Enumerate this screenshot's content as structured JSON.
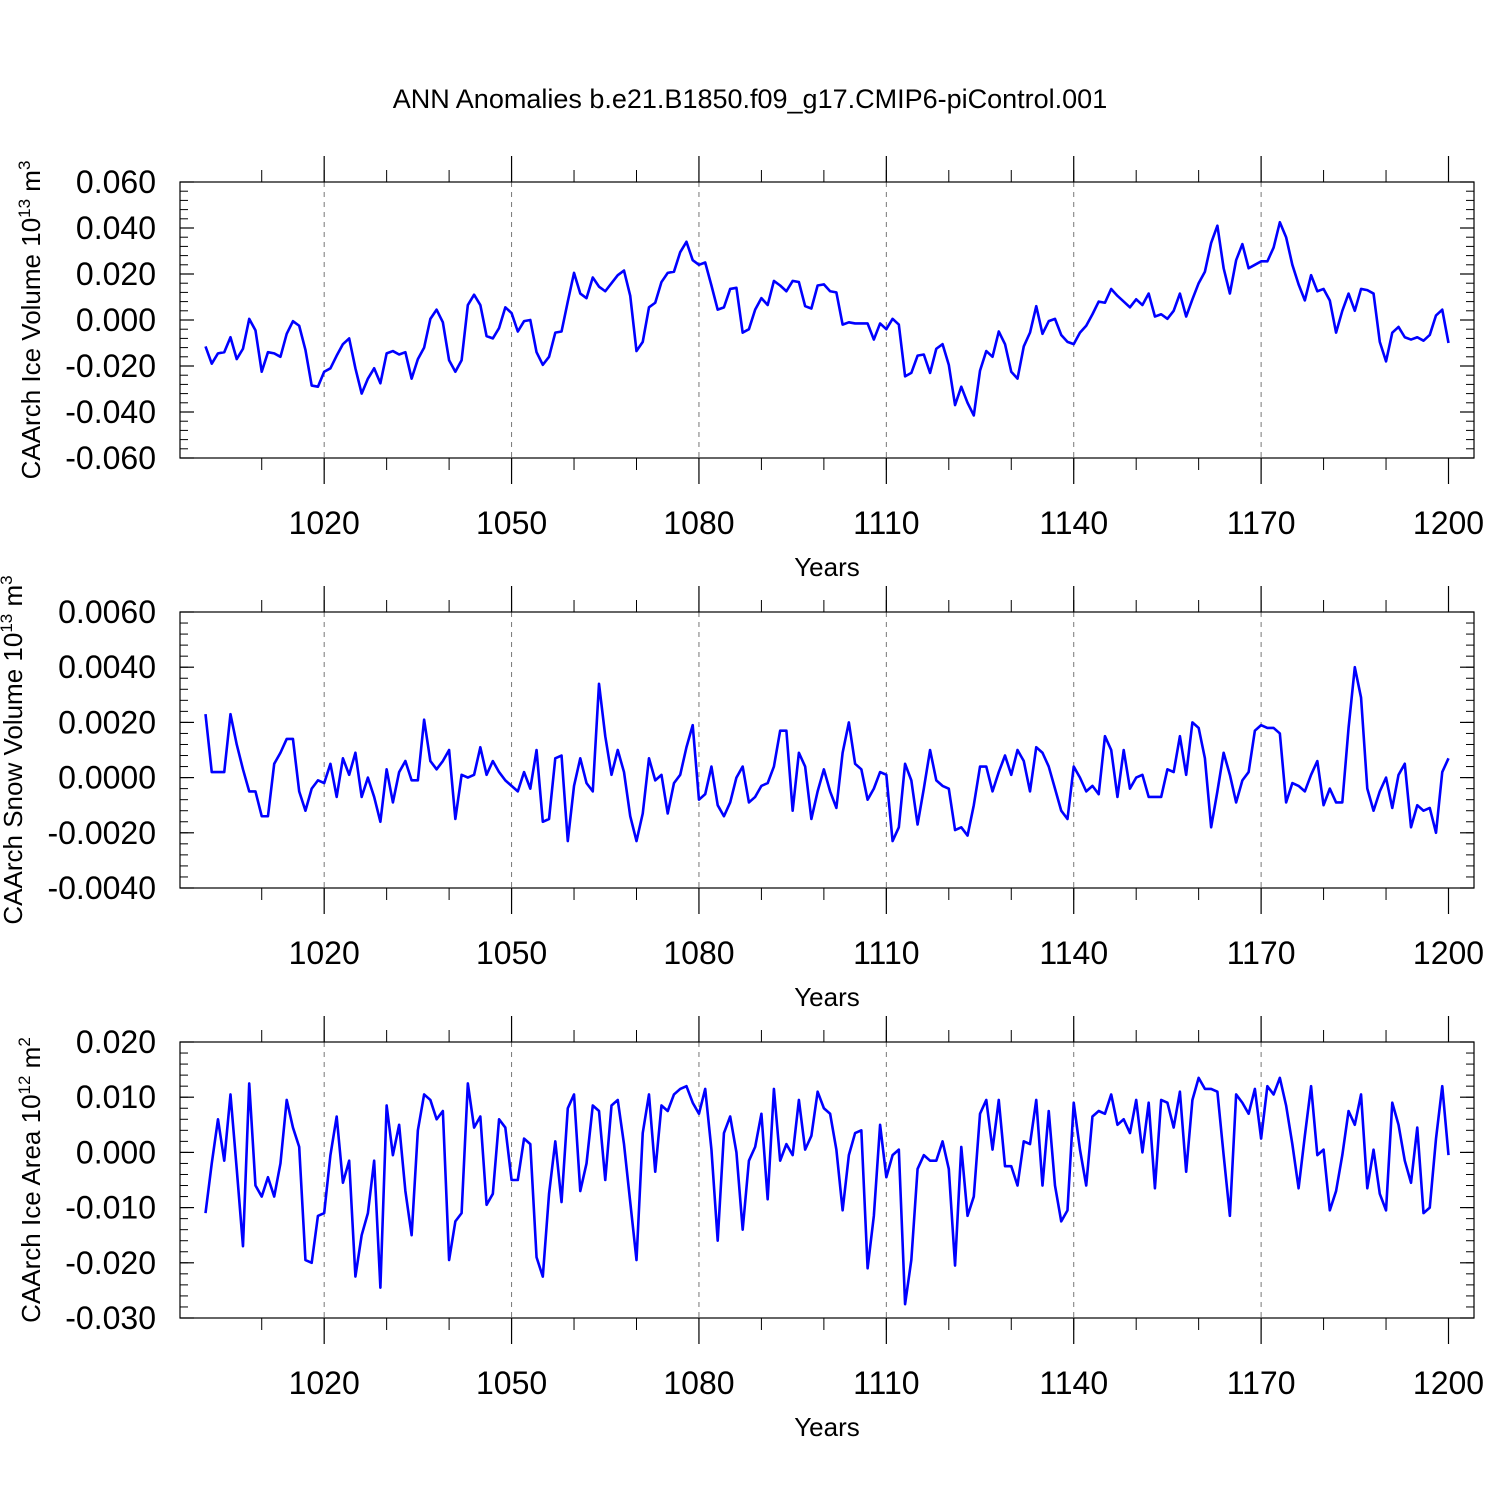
{
  "title": "ANN Anomalies b.e21.B1850.f09_g17.CMIP6-piControl.001",
  "chart_data": [
    {
      "type": "line",
      "title": "",
      "xlabel": "Years",
      "ylabel": "CAArch Ice Volume 10",
      "ylabel_sup": "13",
      "ylabel_unit": " m",
      "ylabel_unit_sup": "3",
      "xlim": [
        1001,
        1200
      ],
      "ylim": [
        -0.06,
        0.06
      ],
      "xticks": [
        1020,
        1050,
        1080,
        1110,
        1140,
        1170,
        1200
      ],
      "xticklabels": [
        "1020",
        "1050",
        "1080",
        "1110",
        "1140",
        "1170",
        "1200"
      ],
      "yticks": [
        -0.06,
        -0.04,
        -0.02,
        0.0,
        0.02,
        0.04,
        0.06
      ],
      "yticklabels": [
        "-0.060",
        "-0.040",
        "-0.020",
        "0.000",
        "0.020",
        "0.040",
        "0.060"
      ],
      "grid": "dashed vertical at major x ticks",
      "color": "#0000ff",
      "start_year": 1001,
      "values": [
        -0.0115,
        -0.019,
        -0.0145,
        -0.014,
        -0.0075,
        -0.017,
        -0.0125,
        0.0005,
        -0.0045,
        -0.0225,
        -0.014,
        -0.0145,
        -0.016,
        -0.006,
        -0.0005,
        -0.0025,
        -0.013,
        -0.0285,
        -0.029,
        -0.0225,
        -0.021,
        -0.0155,
        -0.0105,
        -0.008,
        -0.021,
        -0.032,
        -0.0255,
        -0.021,
        -0.0275,
        -0.0145,
        -0.0135,
        -0.015,
        -0.014,
        -0.0255,
        -0.017,
        -0.012,
        0.0005,
        0.0045,
        -0.001,
        -0.0175,
        -0.0225,
        -0.0175,
        0.0065,
        0.011,
        0.0065,
        -0.007,
        -0.008,
        -0.0035,
        0.0055,
        0.003,
        -0.005,
        -0.0005,
        0.0,
        -0.014,
        -0.0195,
        -0.016,
        -0.0055,
        -0.005,
        0.008,
        0.0205,
        0.0115,
        0.0095,
        0.0185,
        0.0145,
        0.0125,
        0.016,
        0.0195,
        0.0215,
        0.0105,
        -0.0135,
        -0.0095,
        0.0055,
        0.0075,
        0.0165,
        0.0205,
        0.021,
        0.0295,
        0.034,
        0.026,
        0.024,
        0.025,
        0.015,
        0.0045,
        0.0055,
        0.0135,
        0.014,
        -0.0055,
        -0.004,
        0.0045,
        0.0095,
        0.0065,
        0.017,
        0.015,
        0.0125,
        0.017,
        0.0165,
        0.006,
        0.005,
        0.015,
        0.0155,
        0.0125,
        0.012,
        -0.002,
        -0.001,
        -0.0015,
        -0.0015,
        -0.0015,
        -0.0085,
        -0.0015,
        -0.004,
        0.0005,
        -0.002,
        -0.0245,
        -0.023,
        -0.0155,
        -0.015,
        -0.023,
        -0.0125,
        -0.0105,
        -0.0195,
        -0.037,
        -0.029,
        -0.036,
        -0.0415,
        -0.022,
        -0.0135,
        -0.016,
        -0.005,
        -0.0105,
        -0.0225,
        -0.0255,
        -0.0115,
        -0.0055,
        0.006,
        -0.006,
        -0.0005,
        0.0005,
        -0.0065,
        -0.0095,
        -0.0105,
        -0.0055,
        -0.0025,
        0.0025,
        0.008,
        0.0075,
        0.0135,
        0.0105,
        0.008,
        0.0055,
        0.009,
        0.0065,
        0.0115,
        0.0015,
        0.0025,
        0.0005,
        0.004,
        0.0115,
        0.0015,
        0.009,
        0.016,
        0.021,
        0.0335,
        0.041,
        0.0225,
        0.0115,
        0.026,
        0.033,
        0.0225,
        0.024,
        0.0255,
        0.0255,
        0.0315,
        0.0425,
        0.036,
        0.024,
        0.0155,
        0.0085,
        0.0195,
        0.0125,
        0.0135,
        0.0085,
        -0.0055,
        0.004,
        0.0115,
        0.004,
        0.0135,
        0.013,
        0.0115,
        -0.0095,
        -0.018,
        -0.0055,
        -0.003,
        -0.0075,
        -0.0085,
        -0.0075,
        -0.009,
        -0.0065,
        0.002,
        0.0045,
        -0.01
      ]
    },
    {
      "type": "line",
      "title": "",
      "xlabel": "Years",
      "ylabel": "CAArch Snow Volume 10",
      "ylabel_sup": "13",
      "ylabel_unit": " m",
      "ylabel_unit_sup": "3",
      "xlim": [
        1001,
        1200
      ],
      "ylim": [
        -0.004,
        0.006
      ],
      "xticks": [
        1020,
        1050,
        1080,
        1110,
        1140,
        1170,
        1200
      ],
      "xticklabels": [
        "1020",
        "1050",
        "1080",
        "1110",
        "1140",
        "1170",
        "1200"
      ],
      "yticks": [
        -0.004,
        -0.002,
        0.0,
        0.002,
        0.004,
        0.006
      ],
      "yticklabels": [
        "-0.0040",
        "-0.0020",
        "0.0000",
        "0.0020",
        "0.0040",
        "0.0060"
      ],
      "grid": "dashed vertical at major x ticks",
      "color": "#0000ff",
      "start_year": 1001,
      "values": [
        0.0023,
        0.0002,
        0.0002,
        0.0002,
        0.0023,
        0.0012,
        0.0003,
        -0.0005,
        -0.0005,
        -0.0014,
        -0.0014,
        0.0005,
        0.0009,
        0.0014,
        0.0014,
        -0.0005,
        -0.0012,
        -0.0004,
        -0.0001,
        -0.0002,
        0.0005,
        -0.0007,
        0.0007,
        0.0001,
        0.0009,
        -0.0007,
        0.0,
        -0.0007,
        -0.0016,
        0.0003,
        -0.0009,
        0.0002,
        0.0006,
        -0.0001,
        -0.0001,
        0.0021,
        0.0006,
        0.0003,
        0.0006,
        0.001,
        -0.0015,
        0.0001,
        0.0,
        0.0001,
        0.0011,
        0.0001,
        0.0006,
        0.0002,
        -0.0001,
        -0.0003,
        -0.0005,
        0.0002,
        -0.0004,
        0.001,
        -0.0016,
        -0.0015,
        0.0007,
        0.0008,
        -0.0023,
        -0.0003,
        0.0007,
        -0.0002,
        -0.0005,
        0.0034,
        0.0015,
        0.0001,
        0.001,
        0.0002,
        -0.0014,
        -0.0023,
        -0.0013,
        0.0007,
        -0.0001,
        0.0001,
        -0.0013,
        -0.0002,
        0.0001,
        0.0011,
        0.0019,
        -0.0008,
        -0.0006,
        0.0004,
        -0.001,
        -0.0014,
        -0.0009,
        0.0,
        0.0004,
        -0.0009,
        -0.0007,
        -0.0003,
        -0.0002,
        0.0004,
        0.0017,
        0.0017,
        -0.0012,
        0.0009,
        0.0004,
        -0.0015,
        -0.0005,
        0.0003,
        -0.0005,
        -0.0011,
        0.0009,
        0.002,
        0.0005,
        0.0003,
        -0.0008,
        -0.0004,
        0.0002,
        0.0001,
        -0.0023,
        -0.0018,
        0.0005,
        -0.0001,
        -0.0017,
        -0.0004,
        0.001,
        -0.0001,
        -0.0003,
        -0.0004,
        -0.0019,
        -0.0018,
        -0.0021,
        -0.001,
        0.0004,
        0.0004,
        -0.0005,
        0.0002,
        0.0008,
        0.0001,
        0.001,
        0.0006,
        -0.0005,
        0.0011,
        0.0009,
        0.0004,
        -0.0004,
        -0.0012,
        -0.0015,
        0.0004,
        0.0,
        -0.0005,
        -0.0003,
        -0.0006,
        0.0015,
        0.001,
        -0.0007,
        0.001,
        -0.0004,
        0.0,
        0.0001,
        -0.0007,
        -0.0007,
        -0.0007,
        0.0003,
        0.0002,
        0.0015,
        0.0001,
        0.002,
        0.0018,
        0.0007,
        -0.0018,
        -0.0005,
        0.0009,
        0.0001,
        -0.0009,
        -0.0001,
        0.0002,
        0.0017,
        0.0019,
        0.0018,
        0.0018,
        0.0016,
        -0.0009,
        -0.0002,
        -0.0003,
        -0.0005,
        0.0001,
        0.0006,
        -0.001,
        -0.0004,
        -0.0009,
        -0.0009,
        0.0018,
        0.004,
        0.0029,
        -0.0004,
        -0.0012,
        -0.0005,
        0.0,
        -0.0011,
        0.0001,
        0.0005,
        -0.0018,
        -0.001,
        -0.0012,
        -0.0011,
        -0.002,
        0.0002,
        0.0007
      ]
    },
    {
      "type": "line",
      "title": "",
      "xlabel": "Years",
      "ylabel": "CAArch Ice Area 10",
      "ylabel_sup": "12",
      "ylabel_unit": " m",
      "ylabel_unit_sup": "2",
      "xlim": [
        1001,
        1200
      ],
      "ylim": [
        -0.03,
        0.02
      ],
      "xticks": [
        1020,
        1050,
        1080,
        1110,
        1140,
        1170,
        1200
      ],
      "xticklabels": [
        "1020",
        "1050",
        "1080",
        "1110",
        "1140",
        "1170",
        "1200"
      ],
      "yticks": [
        -0.03,
        -0.02,
        -0.01,
        0.0,
        0.01,
        0.02
      ],
      "yticklabels": [
        "-0.030",
        "-0.020",
        "-0.010",
        "0.000",
        "0.010",
        "0.020"
      ],
      "grid": "dashed vertical at major x ticks",
      "color": "#0000ff",
      "start_year": 1001,
      "values": [
        -0.011,
        -0.002,
        0.006,
        -0.0015,
        0.0105,
        -0.003,
        -0.017,
        0.0125,
        -0.006,
        -0.008,
        -0.0045,
        -0.008,
        -0.002,
        0.0095,
        0.0045,
        0.001,
        -0.0195,
        -0.02,
        -0.0115,
        -0.011,
        -0.0005,
        0.0065,
        -0.0055,
        -0.0015,
        -0.0225,
        -0.015,
        -0.011,
        -0.0015,
        -0.0245,
        0.0085,
        -0.0005,
        0.005,
        -0.007,
        -0.015,
        0.004,
        0.0105,
        0.0095,
        0.006,
        0.0075,
        -0.0195,
        -0.0125,
        -0.011,
        0.0125,
        0.0045,
        0.0065,
        -0.0095,
        -0.0075,
        0.006,
        0.0045,
        -0.005,
        -0.005,
        0.0025,
        0.0015,
        -0.019,
        -0.0225,
        -0.0075,
        0.002,
        -0.009,
        0.008,
        0.0105,
        -0.007,
        -0.002,
        0.0085,
        0.0075,
        -0.005,
        0.0085,
        0.0095,
        0.0015,
        -0.009,
        -0.0195,
        0.0035,
        0.0105,
        -0.0035,
        0.0085,
        0.0075,
        0.0105,
        0.0115,
        0.012,
        0.009,
        0.007,
        0.0115,
        0.0005,
        -0.016,
        0.0035,
        0.0065,
        0.0,
        -0.014,
        -0.0015,
        0.001,
        0.007,
        -0.0085,
        0.0115,
        -0.0015,
        0.0015,
        -0.0005,
        0.0095,
        0.0005,
        0.003,
        0.011,
        0.008,
        0.007,
        0.0005,
        -0.0105,
        -0.0005,
        0.0035,
        0.004,
        -0.021,
        -0.0115,
        0.005,
        -0.0045,
        -0.0005,
        0.0005,
        -0.0275,
        -0.0195,
        -0.003,
        -0.0005,
        -0.0015,
        -0.0015,
        0.002,
        -0.003,
        -0.0205,
        0.001,
        -0.0115,
        -0.008,
        0.007,
        0.0095,
        0.0005,
        0.0095,
        -0.0025,
        -0.0025,
        -0.006,
        0.002,
        0.0015,
        0.0095,
        -0.006,
        0.0075,
        -0.006,
        -0.0125,
        -0.0105,
        0.009,
        0.0005,
        -0.006,
        0.0065,
        0.0075,
        0.007,
        0.0105,
        0.005,
        0.006,
        0.0035,
        0.0095,
        0.0,
        0.009,
        -0.0065,
        0.0095,
        0.009,
        0.0045,
        0.011,
        -0.0035,
        0.0095,
        0.0135,
        0.0115,
        0.0115,
        0.011,
        -0.0005,
        -0.0115,
        0.0105,
        0.009,
        0.007,
        0.0115,
        0.0025,
        0.012,
        0.0105,
        0.0135,
        0.0085,
        0.0015,
        -0.0065,
        0.003,
        0.012,
        -0.0005,
        0.0005,
        -0.0105,
        -0.007,
        -0.0005,
        0.0075,
        0.005,
        0.0105,
        -0.0065,
        0.0005,
        -0.0075,
        -0.0105,
        0.009,
        0.005,
        -0.0015,
        -0.0055,
        0.0045,
        -0.011,
        -0.01,
        0.0025,
        0.012,
        -0.0005
      ]
    }
  ]
}
